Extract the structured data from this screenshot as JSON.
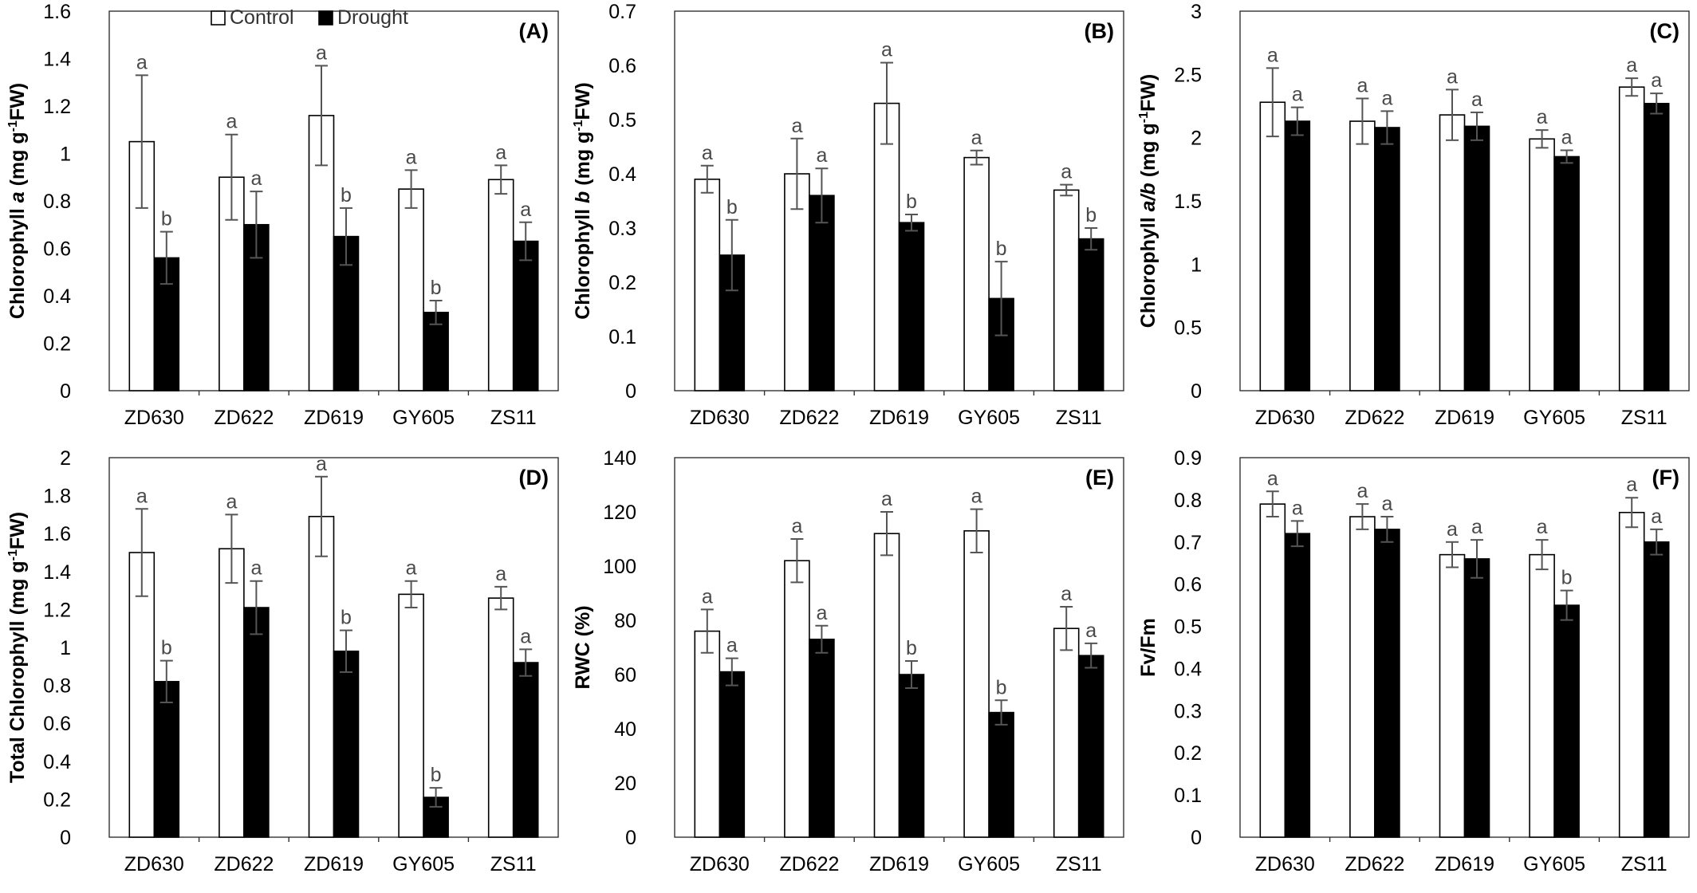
{
  "chart_data": [
    {
      "type": "bar",
      "panel": "(A)",
      "ylabel_parts": [
        {
          "t": "Chlorophyll "
        },
        {
          "t": "a",
          "i": true
        },
        {
          "t": " (mg g"
        },
        {
          "t": "-1",
          "sup": true
        },
        {
          "t": "FW)"
        }
      ],
      "categories": [
        "ZD630",
        "ZD622",
        "ZD619",
        "GY605",
        "ZS11"
      ],
      "ylim": [
        0,
        1.6
      ],
      "yticks": [
        "0",
        "0.2",
        "0.4",
        "0.6",
        "0.8",
        "1",
        "1.2",
        "1.4",
        "1.6"
      ],
      "legend": {
        "placement": "top-center",
        "items": [
          "Control",
          "Drought"
        ]
      },
      "series": [
        {
          "name": "Control",
          "values": [
            1.05,
            0.9,
            1.16,
            0.85,
            0.89
          ],
          "errors": [
            0.28,
            0.18,
            0.21,
            0.08,
            0.06
          ],
          "letters": [
            "a",
            "a",
            "a",
            "a",
            "a"
          ]
        },
        {
          "name": "Drought",
          "values": [
            0.56,
            0.7,
            0.65,
            0.33,
            0.63
          ],
          "errors": [
            0.11,
            0.14,
            0.12,
            0.05,
            0.08
          ],
          "letters": [
            "b",
            "a",
            "b",
            "b",
            "a"
          ]
        }
      ]
    },
    {
      "type": "bar",
      "panel": "(B)",
      "ylabel_parts": [
        {
          "t": "Chlorophyll "
        },
        {
          "t": "b",
          "i": true
        },
        {
          "t": " (mg g"
        },
        {
          "t": "-1",
          "sup": true
        },
        {
          "t": "FW)"
        }
      ],
      "categories": [
        "ZD630",
        "ZD622",
        "ZD619",
        "GY605",
        "ZS11"
      ],
      "ylim": [
        0,
        0.7
      ],
      "yticks": [
        "0",
        "0.1",
        "0.2",
        "0.3",
        "0.4",
        "0.5",
        "0.6",
        "0.7"
      ],
      "series": [
        {
          "name": "Control",
          "values": [
            0.39,
            0.4,
            0.53,
            0.43,
            0.37
          ],
          "errors": [
            0.025,
            0.065,
            0.075,
            0.013,
            0.01
          ],
          "letters": [
            "a",
            "a",
            "a",
            "a",
            "a"
          ]
        },
        {
          "name": "Drought",
          "values": [
            0.25,
            0.36,
            0.31,
            0.17,
            0.28
          ],
          "errors": [
            0.065,
            0.05,
            0.015,
            0.068,
            0.02
          ],
          "letters": [
            "b",
            "a",
            "b",
            "b",
            "b"
          ]
        }
      ]
    },
    {
      "type": "bar",
      "panel": "(C)",
      "ylabel_parts": [
        {
          "t": "Chlorophyll "
        },
        {
          "t": "a/b",
          "i": true
        },
        {
          "t": " (mg g"
        },
        {
          "t": "-1",
          "sup": true
        },
        {
          "t": "FW)"
        }
      ],
      "categories": [
        "ZD630",
        "ZD622",
        "ZD619",
        "GY605",
        "ZS11"
      ],
      "ylim": [
        0,
        3
      ],
      "yticks": [
        "0",
        "0.5",
        "1",
        "1.5",
        "2",
        "2.5",
        "3"
      ],
      "series": [
        {
          "name": "Control",
          "values": [
            2.28,
            2.13,
            2.18,
            1.99,
            2.4
          ],
          "errors": [
            0.27,
            0.18,
            0.2,
            0.07,
            0.07
          ],
          "letters": [
            "a",
            "a",
            "a",
            "a",
            "a"
          ]
        },
        {
          "name": "Drought",
          "values": [
            2.13,
            2.08,
            2.09,
            1.85,
            2.27
          ],
          "errors": [
            0.11,
            0.13,
            0.11,
            0.05,
            0.08
          ],
          "letters": [
            "a",
            "a",
            "a",
            "a",
            "a"
          ]
        }
      ]
    },
    {
      "type": "bar",
      "panel": "(D)",
      "ylabel_parts": [
        {
          "t": "Total Chlorophyll (mg g"
        },
        {
          "t": "-1",
          "sup": true
        },
        {
          "t": "FW)"
        }
      ],
      "categories": [
        "ZD630",
        "ZD622",
        "ZD619",
        "GY605",
        "ZS11"
      ],
      "ylim": [
        0,
        2
      ],
      "yticks": [
        "0",
        "0.2",
        "0.4",
        "0.6",
        "0.8",
        "1",
        "1.2",
        "1.4",
        "1.6",
        "1.8",
        "2"
      ],
      "series": [
        {
          "name": "Control",
          "values": [
            1.5,
            1.52,
            1.69,
            1.28,
            1.26
          ],
          "errors": [
            0.23,
            0.18,
            0.21,
            0.07,
            0.06
          ],
          "letters": [
            "a",
            "a",
            "a",
            "a",
            "a"
          ]
        },
        {
          "name": "Drought",
          "values": [
            0.82,
            1.21,
            0.98,
            0.21,
            0.92
          ],
          "errors": [
            0.11,
            0.14,
            0.11,
            0.05,
            0.07
          ],
          "letters": [
            "b",
            "a",
            "b",
            "b",
            "a"
          ]
        }
      ]
    },
    {
      "type": "bar",
      "panel": "(E)",
      "ylabel_parts": [
        {
          "t": "RWC (%)"
        }
      ],
      "categories": [
        "ZD630",
        "ZD622",
        "ZD619",
        "GY605",
        "ZS11"
      ],
      "ylim": [
        0,
        140
      ],
      "yticks": [
        "0",
        "20",
        "40",
        "60",
        "80",
        "100",
        "120",
        "140"
      ],
      "series": [
        {
          "name": "Control",
          "values": [
            76,
            102,
            112,
            113,
            77
          ],
          "errors": [
            8,
            8,
            8,
            8,
            8
          ],
          "letters": [
            "a",
            "a",
            "a",
            "a",
            "a"
          ]
        },
        {
          "name": "Drought",
          "values": [
            61,
            73,
            60,
            46,
            67
          ],
          "errors": [
            5,
            5,
            5,
            4.5,
            4.5
          ],
          "letters": [
            "a",
            "a",
            "b",
            "b",
            "a"
          ]
        }
      ]
    },
    {
      "type": "bar",
      "panel": "(F)",
      "ylabel_parts": [
        {
          "t": "Fv/Fm"
        }
      ],
      "categories": [
        "ZD630",
        "ZD622",
        "ZD619",
        "GY605",
        "ZS11"
      ],
      "ylim": [
        0,
        0.9
      ],
      "yticks": [
        "0",
        "0.1",
        "0.2",
        "0.3",
        "0.4",
        "0.5",
        "0.6",
        "0.7",
        "0.8",
        "0.9"
      ],
      "series": [
        {
          "name": "Control",
          "values": [
            0.79,
            0.76,
            0.67,
            0.67,
            0.77
          ],
          "errors": [
            0.03,
            0.03,
            0.03,
            0.035,
            0.035
          ],
          "letters": [
            "a",
            "a",
            "a",
            "a",
            "a"
          ]
        },
        {
          "name": "Drought",
          "values": [
            0.72,
            0.73,
            0.66,
            0.55,
            0.7
          ],
          "errors": [
            0.03,
            0.03,
            0.045,
            0.035,
            0.03
          ],
          "letters": [
            "a",
            "a",
            "a",
            "b",
            "a"
          ]
        }
      ]
    }
  ]
}
